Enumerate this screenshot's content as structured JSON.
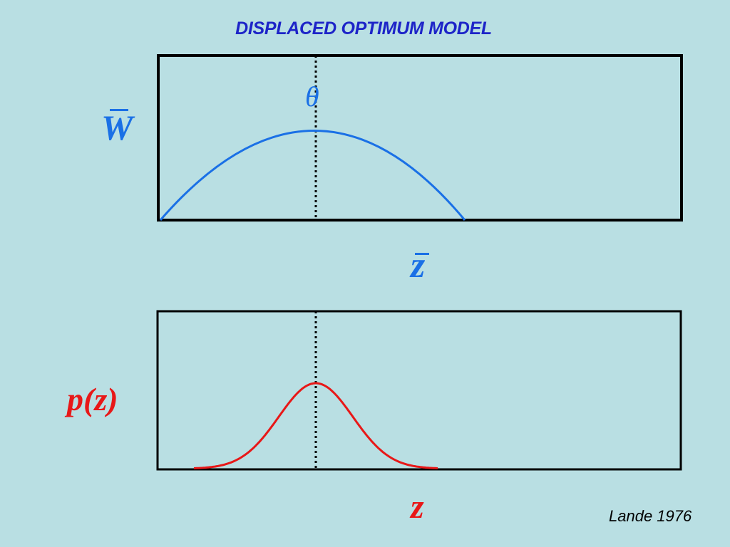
{
  "title": "DISPLACED OPTIMUM MODEL",
  "labels": {
    "fitness_axis": "W",
    "optimum": "θ",
    "mean_phenotype": "z",
    "distribution_axis": "p(z)",
    "phenotype": "z"
  },
  "citation": "Lande 1976",
  "colors": {
    "background": "#b9dfe3",
    "title": "#1d24c8",
    "fitness_curve": "#1a70e6",
    "distribution_curve": "#e81818",
    "frame": "#000000"
  }
}
